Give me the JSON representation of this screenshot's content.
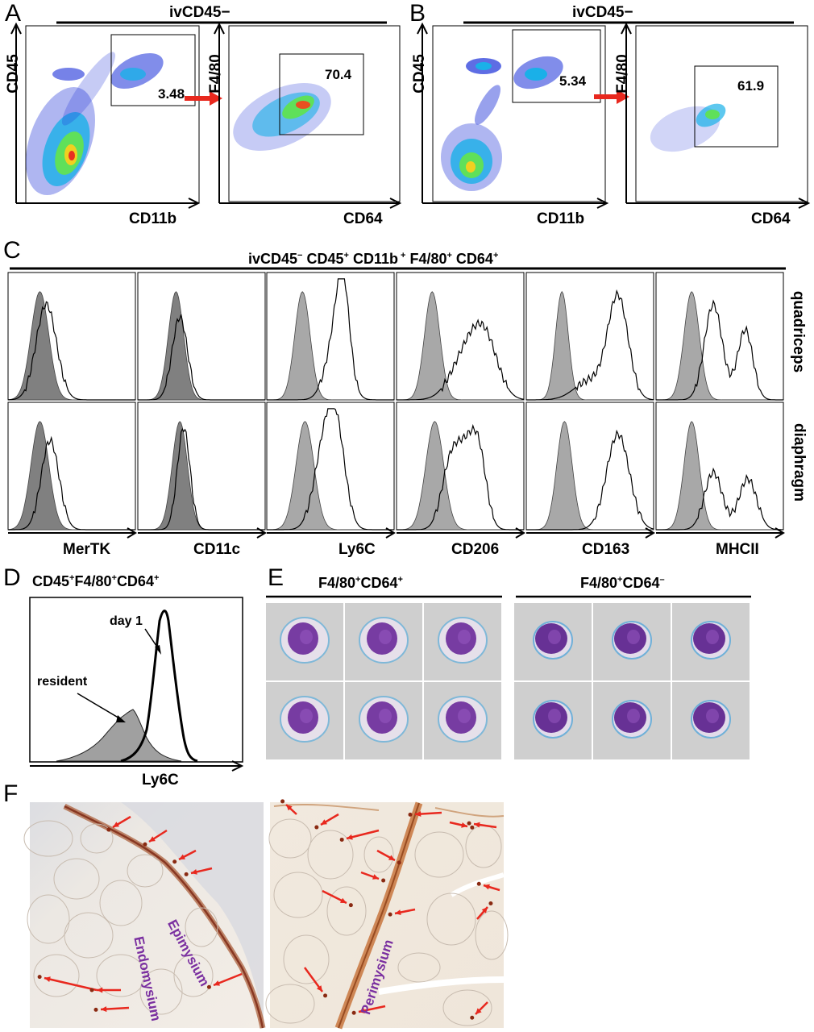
{
  "panel_a": {
    "letter": "A",
    "header": "ivCD45−",
    "dot1": {
      "x_axis": "CD11b",
      "y_axis": "CD45",
      "gate_value": "3.48"
    },
    "dot2": {
      "x_axis": "CD64",
      "y_axis": "F4/80",
      "gate_value": "70.4"
    }
  },
  "panel_b": {
    "letter": "B",
    "header": "ivCD45−",
    "dot1": {
      "x_axis": "CD11b",
      "y_axis": "CD45",
      "gate_value": "5.34"
    },
    "dot2": {
      "x_axis": "CD64",
      "y_axis": "F4/80",
      "gate_value": "61.9"
    }
  },
  "panel_c": {
    "letter": "C",
    "header_parts": [
      "ivCD45",
      "−",
      " CD45",
      "+",
      " CD11b",
      " +",
      " F4/80",
      "+",
      " CD64",
      "+"
    ],
    "rows": [
      "quadriceps",
      "diaphragm"
    ],
    "markers": [
      "MerTK",
      "CD11c",
      "Ly6C",
      "CD206",
      "CD163",
      "MHCII"
    ]
  },
  "panel_d": {
    "letter": "D",
    "title_parts": [
      "CD45",
      "+",
      "F4/80",
      "+",
      "CD64",
      "+"
    ],
    "x_axis": "Ly6C",
    "labels": {
      "day": "day 1",
      "resident": "resident"
    }
  },
  "panel_e": {
    "letter": "E",
    "group1": [
      "F4/80",
      "+",
      "CD64",
      "+"
    ],
    "group2": [
      "F4/80",
      "+",
      "CD64",
      "–"
    ]
  },
  "panel_f": {
    "letter": "F",
    "left_labels": [
      "Epimysium",
      "Endomysium"
    ],
    "right_labels": [
      "Perimysium"
    ]
  },
  "colors": {
    "arrow": "#e8281e",
    "stain": "#8a2a12",
    "label": "#7a2fa0",
    "cell": "#5a1e8c"
  }
}
